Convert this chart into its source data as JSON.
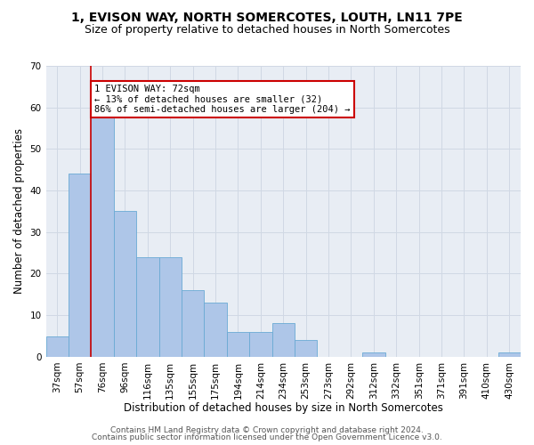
{
  "title1": "1, EVISON WAY, NORTH SOMERCOTES, LOUTH, LN11 7PE",
  "title2": "Size of property relative to detached houses in North Somercotes",
  "xlabel": "Distribution of detached houses by size in North Somercotes",
  "ylabel": "Number of detached properties",
  "categories": [
    "37sqm",
    "57sqm",
    "76sqm",
    "96sqm",
    "116sqm",
    "135sqm",
    "155sqm",
    "175sqm",
    "194sqm",
    "214sqm",
    "234sqm",
    "253sqm",
    "273sqm",
    "292sqm",
    "312sqm",
    "332sqm",
    "351sqm",
    "371sqm",
    "391sqm",
    "410sqm",
    "430sqm"
  ],
  "values": [
    5,
    44,
    59,
    35,
    24,
    24,
    16,
    13,
    6,
    6,
    8,
    4,
    0,
    0,
    1,
    0,
    0,
    0,
    0,
    0,
    1
  ],
  "bar_color": "#aec6e8",
  "bar_edge_color": "#6aaad4",
  "red_line_x": 1.5,
  "annotation_line1": "1 EVISON WAY: 72sqm",
  "annotation_line2": "← 13% of detached houses are smaller (32)",
  "annotation_line3": "86% of semi-detached houses are larger (204) →",
  "annotation_box_color": "#ffffff",
  "annotation_box_edge": "#cc0000",
  "red_line_color": "#cc0000",
  "ylim": [
    0,
    70
  ],
  "yticks": [
    0,
    10,
    20,
    30,
    40,
    50,
    60,
    70
  ],
  "grid_color": "#d0d8e4",
  "bg_color": "#e8edf4",
  "footer1": "Contains HM Land Registry data © Crown copyright and database right 2024.",
  "footer2": "Contains public sector information licensed under the Open Government Licence v3.0.",
  "title1_fontsize": 10,
  "title2_fontsize": 9,
  "xlabel_fontsize": 8.5,
  "ylabel_fontsize": 8.5,
  "tick_fontsize": 7.5,
  "annotation_fontsize": 7.5,
  "footer_fontsize": 6.5
}
